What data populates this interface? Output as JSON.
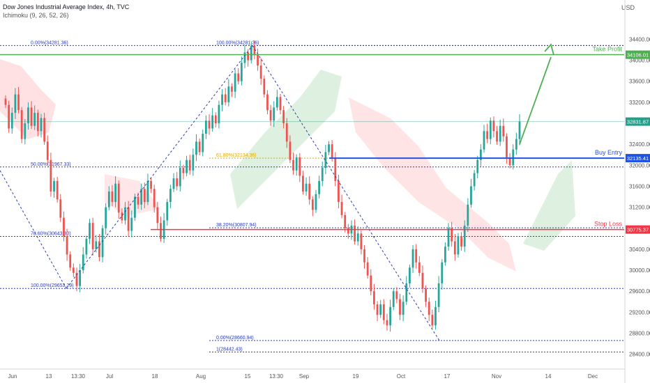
{
  "header": {
    "title": "Dow Jones Industrial Average Index, 4h, TVC",
    "indicator": "Ichimoku (9, 26, 52, 26)",
    "currency": "USD"
  },
  "colors": {
    "up": "#26a69a",
    "down": "#ef5350",
    "fib": "#2a3bb5",
    "fib_618": "#e0a800",
    "take_profit": "#4caf50",
    "buy_entry": "#1e53e5",
    "stop_loss": "#f23645",
    "cloud_green": "#c8e6c9",
    "cloud_red": "#ffcdd2",
    "current": "#22a08a"
  },
  "chart_data": {
    "type": "candlestick",
    "y_axis": {
      "range": [
        28250,
        34750
      ],
      "ticks": [
        28400,
        28800,
        29200,
        29600,
        30000,
        30400,
        30800,
        31200,
        31600,
        32000,
        32400,
        32800,
        33200,
        33600,
        34000,
        34400
      ],
      "tick_labels": [
        "28400.00",
        "28800.00",
        "29200.00",
        "29600.00",
        "30000.00",
        "30400.00",
        "30800.00",
        "31200.00",
        "31600.00",
        "32000.00",
        "32400.00",
        "32800.00",
        "33200.00",
        "33600.00",
        "34000.00",
        "34400.00"
      ]
    },
    "x_axis": {
      "ticks": [
        "Jun",
        "13",
        "13:30",
        "Jul",
        "18",
        "Aug",
        "15",
        "13:30",
        "Sep",
        "19",
        "Oct",
        "17",
        "Nov",
        "14",
        "Dec"
      ]
    },
    "levels": {
      "take_profit": {
        "label": "Take Profit",
        "value": 34106.01,
        "price": "34106.01"
      },
      "buy_entry": {
        "label": "Buy Entry",
        "value": 32135.41,
        "price": "32135.41"
      },
      "stop_loss": {
        "label": "Stop Loss",
        "value": 30775.37,
        "price": "30775.37"
      },
      "current": {
        "value": 32831.87,
        "price": "32831.87"
      }
    },
    "fib_left": [
      {
        "label": "0.00%(34281.36)",
        "value": 34281.36
      },
      {
        "label": "50.00%(31967.33)",
        "value": 31967.33
      },
      {
        "label": "78.60%(30643.80)",
        "value": 30643.8
      },
      {
        "label": "100.00%(29653.29)",
        "value": 29653.29
      }
    ],
    "fib_right": [
      {
        "label": "100.00%(34281.36)",
        "value": 34281.36
      },
      {
        "label": "61.80%(32134.36)",
        "value": 32134.36
      },
      {
        "label": "38.20%(30807.94)",
        "value": 30807.94
      },
      {
        "label": "0.00%(28660.94)",
        "value": 28660.94
      },
      {
        "label": "1(28442.43)",
        "value": 28442.43
      }
    ],
    "series": [
      {
        "name": "DJI 4h",
        "closes": [
          33150,
          32700,
          33000,
          33350,
          33050,
          32500,
          32800,
          33100,
          32750,
          33000,
          32650,
          32900,
          32450,
          32100,
          31500,
          31700,
          31350,
          31000,
          30650,
          30300,
          30050,
          29950,
          29700,
          30000,
          30300,
          30600,
          30900,
          30400,
          30550,
          30250,
          30800,
          31200,
          31500,
          31300,
          31650,
          31100,
          30950,
          31200,
          30750,
          31000,
          31400,
          31250,
          31550,
          31300,
          31700,
          31550,
          31200,
          30900,
          30600,
          30950,
          31300,
          31550,
          31750,
          31600,
          31950,
          31850,
          32100,
          31900,
          32200,
          32450,
          32250,
          32600,
          32850,
          32700,
          32950,
          32800,
          33150,
          33350,
          33200,
          33500,
          33400,
          33750,
          33600,
          33950,
          34150,
          34000,
          34280,
          34100,
          33900,
          33650,
          33350,
          33050,
          32850,
          33100,
          33300,
          33050,
          32800,
          32450,
          32100,
          31900,
          32150,
          31800,
          31500,
          31650,
          31350,
          31150,
          31450,
          31700,
          31950,
          32250,
          32400,
          32150,
          31700,
          31300,
          31050,
          30800,
          30700,
          30850,
          30550,
          30700,
          30400,
          30150,
          29900,
          29600,
          29350,
          29150,
          29350,
          29050,
          28950,
          29300,
          29600,
          29450,
          29150,
          29400,
          29750,
          30050,
          30400,
          30150,
          29950,
          29650,
          29400,
          29150,
          28950,
          29300,
          29750,
          30150,
          30450,
          30800,
          30550,
          30300,
          30650,
          30450,
          30850,
          31250,
          31600,
          31850,
          32100,
          32300,
          32650,
          32500,
          32850,
          32650,
          32450,
          32750,
          32550,
          32150,
          32000,
          32300,
          32500,
          32831.87
        ]
      }
    ]
  }
}
